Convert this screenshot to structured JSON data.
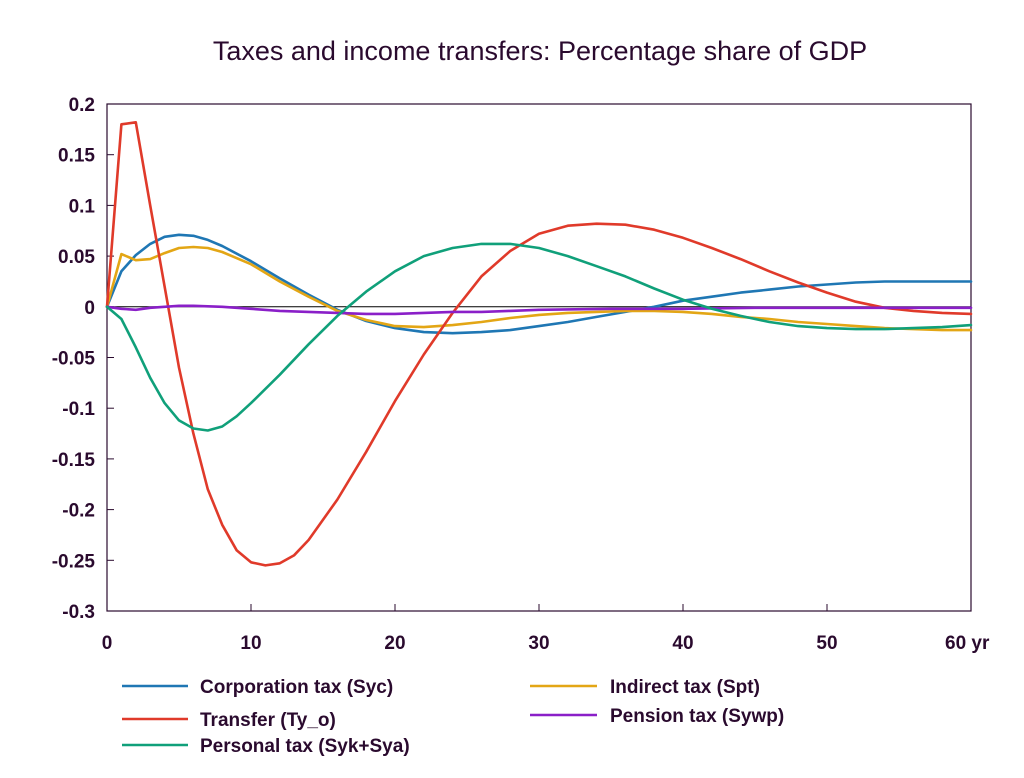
{
  "chart_data": {
    "type": "line",
    "title": "Taxes and income transfers: Percentage share of GDP",
    "xlabel": "",
    "ylabel": "",
    "x_unit": "yr",
    "xlim": [
      0,
      60
    ],
    "ylim": [
      -0.3,
      0.2
    ],
    "x_ticks": [
      "0",
      "10",
      "20",
      "30",
      "40",
      "50",
      "60 yr"
    ],
    "y_ticks": [
      "0.2",
      "0.15",
      "0.1",
      "0.05",
      "0",
      "-0.05",
      "-0.1",
      "-0.15",
      "-0.2",
      "-0.25",
      "-0.3"
    ],
    "grid": false,
    "zero_line": true,
    "legend": "bottom",
    "series": [
      {
        "name": "Corporation tax (Syc)",
        "color": "#1f77b4",
        "x": [
          0,
          1,
          2,
          3,
          4,
          5,
          6,
          7,
          8,
          10,
          12,
          14,
          16,
          18,
          20,
          22,
          24,
          26,
          28,
          30,
          32,
          34,
          36,
          38,
          40,
          42,
          44,
          46,
          48,
          50,
          52,
          54,
          56,
          58,
          60
        ],
        "y": [
          0,
          0.035,
          0.051,
          0.062,
          0.069,
          0.071,
          0.07,
          0.066,
          0.06,
          0.045,
          0.028,
          0.012,
          -0.003,
          -0.014,
          -0.021,
          -0.025,
          -0.026,
          -0.025,
          -0.023,
          -0.019,
          -0.015,
          -0.01,
          -0.005,
          0.0,
          0.006,
          0.01,
          0.014,
          0.017,
          0.02,
          0.022,
          0.024,
          0.025,
          0.025,
          0.025,
          0.025
        ]
      },
      {
        "name": "Indirect tax (Spt)",
        "color": "#e3a615",
        "x": [
          0,
          1,
          2,
          3,
          4,
          5,
          6,
          7,
          8,
          10,
          12,
          14,
          16,
          18,
          20,
          22,
          24,
          26,
          28,
          30,
          32,
          34,
          36,
          38,
          40,
          42,
          44,
          46,
          48,
          50,
          52,
          54,
          56,
          58,
          60
        ],
        "y": [
          0,
          0.052,
          0.046,
          0.047,
          0.053,
          0.058,
          0.059,
          0.058,
          0.054,
          0.042,
          0.025,
          0.01,
          -0.004,
          -0.013,
          -0.019,
          -0.02,
          -0.018,
          -0.015,
          -0.011,
          -0.008,
          -0.006,
          -0.005,
          -0.004,
          -0.004,
          -0.005,
          -0.007,
          -0.01,
          -0.012,
          -0.015,
          -0.017,
          -0.019,
          -0.021,
          -0.022,
          -0.023,
          -0.023
        ]
      },
      {
        "name": "Transfer (Ty_o)",
        "color": "#e03a2a",
        "x": [
          0,
          1,
          2,
          3,
          4,
          5,
          6,
          7,
          8,
          9,
          10,
          11,
          12,
          13,
          14,
          16,
          18,
          20,
          22,
          24,
          26,
          28,
          30,
          32,
          34,
          36,
          38,
          40,
          42,
          44,
          46,
          48,
          50,
          52,
          54,
          56,
          58,
          60
        ],
        "y": [
          0,
          0.18,
          0.182,
          0.1,
          0.02,
          -0.06,
          -0.125,
          -0.18,
          -0.215,
          -0.24,
          -0.252,
          -0.255,
          -0.253,
          -0.245,
          -0.23,
          -0.19,
          -0.143,
          -0.093,
          -0.047,
          -0.006,
          0.03,
          0.055,
          0.072,
          0.08,
          0.082,
          0.081,
          0.076,
          0.068,
          0.058,
          0.047,
          0.035,
          0.024,
          0.014,
          0.005,
          -0.001,
          -0.004,
          -0.006,
          -0.007
        ]
      },
      {
        "name": "Pension tax (Sywp)",
        "color": "#8a1fc8",
        "x": [
          0,
          1,
          2,
          3,
          4,
          5,
          6,
          8,
          10,
          12,
          14,
          16,
          18,
          20,
          22,
          24,
          26,
          28,
          30,
          35,
          40,
          45,
          50,
          55,
          60
        ],
        "y": [
          0,
          -0.002,
          -0.003,
          -0.001,
          0.0,
          0.001,
          0.001,
          0.0,
          -0.002,
          -0.004,
          -0.005,
          -0.006,
          -0.007,
          -0.007,
          -0.006,
          -0.005,
          -0.005,
          -0.004,
          -0.003,
          -0.002,
          -0.002,
          -0.001,
          -0.001,
          -0.001,
          -0.001
        ]
      },
      {
        "name": "Personal tax (Syk+Sya)",
        "color": "#10a07a",
        "x": [
          0,
          1,
          2,
          3,
          4,
          5,
          6,
          7,
          8,
          9,
          10,
          12,
          14,
          16,
          18,
          20,
          22,
          24,
          26,
          28,
          30,
          32,
          34,
          36,
          38,
          40,
          42,
          44,
          46,
          48,
          50,
          52,
          54,
          56,
          58,
          60
        ],
        "y": [
          0,
          -0.012,
          -0.04,
          -0.07,
          -0.095,
          -0.112,
          -0.12,
          -0.122,
          -0.118,
          -0.108,
          -0.095,
          -0.067,
          -0.037,
          -0.009,
          0.015,
          0.035,
          0.05,
          0.058,
          0.062,
          0.062,
          0.058,
          0.05,
          0.04,
          0.03,
          0.018,
          0.007,
          -0.002,
          -0.009,
          -0.015,
          -0.019,
          -0.021,
          -0.022,
          -0.022,
          -0.021,
          -0.02,
          -0.018
        ]
      }
    ]
  }
}
